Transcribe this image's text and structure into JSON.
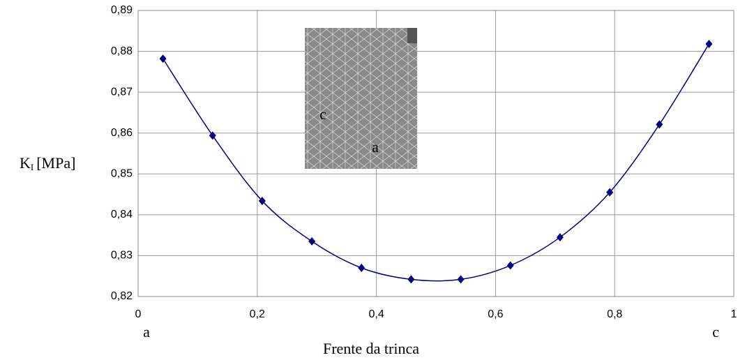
{
  "chart_data": {
    "type": "line",
    "y_label": {
      "main": "K",
      "sub": "I",
      "unit": "[MPa]"
    },
    "x_label": "Frente da trinca",
    "x_end_labels": [
      "a",
      "c"
    ],
    "inset_labels": [
      "c",
      "a"
    ],
    "x": [
      0.0417,
      0.125,
      0.2083,
      0.2917,
      0.375,
      0.4583,
      0.5417,
      0.625,
      0.7083,
      0.7917,
      0.875,
      0.9583
    ],
    "series": [
      {
        "color": "#000080",
        "values": [
          0.8782,
          0.8594,
          0.8434,
          0.8335,
          0.827,
          0.8242,
          0.8242,
          0.8276,
          0.8345,
          0.8455,
          0.8621,
          0.8818
        ]
      }
    ],
    "xlim": [
      0,
      1
    ],
    "xticks": [
      0,
      {
        "value": 0.2,
        "label": "0,2"
      },
      {
        "value": 0.4,
        "label": "0,4"
      },
      {
        "value": 0.6,
        "label": "0,6"
      },
      {
        "value": 0.8,
        "label": "0,8"
      },
      1
    ],
    "ylim": [
      0.82,
      0.89
    ],
    "yticks": [
      {
        "value": 0.82,
        "label": "0,82"
      },
      {
        "value": 0.83,
        "label": "0,83"
      },
      {
        "value": 0.84,
        "label": "0,84"
      },
      {
        "value": 0.85,
        "label": "0,85"
      },
      {
        "value": 0.86,
        "label": "0,86"
      },
      {
        "value": 0.87,
        "label": "0,87"
      },
      {
        "value": 0.88,
        "label": "0,88"
      },
      {
        "value": 0.89,
        "label": "0,89"
      }
    ],
    "grid": true
  }
}
